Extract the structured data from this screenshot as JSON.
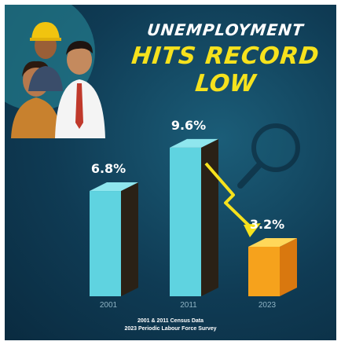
{
  "headline": {
    "line1": "UNEMPLOYMENT",
    "line2": "HITS RECORD",
    "line3": "LOW"
  },
  "source": {
    "line1": "2001 & 2011 Census Data",
    "line2": "2023 Periodic Labour Force Survey"
  },
  "colors": {
    "background": "#0f3b54",
    "headline_accent": "#f6e21d",
    "bar_cyan": "#5fd3e0",
    "bar_dark": "#2a2116",
    "bar_orange": "#f6a21c",
    "arrow": "#f6e21d"
  },
  "chart_data": {
    "type": "bar",
    "categories": [
      "2001",
      "2011",
      "2023"
    ],
    "values": [
      6.8,
      9.6,
      3.2
    ],
    "data_labels": [
      "6.8%",
      "9.6%",
      "3.2%"
    ],
    "title": "UNEMPLOYMENT HITS RECORD LOW",
    "xlabel": "",
    "ylabel": "",
    "ylim": [
      0,
      10
    ],
    "grid": false,
    "legend": "none"
  }
}
